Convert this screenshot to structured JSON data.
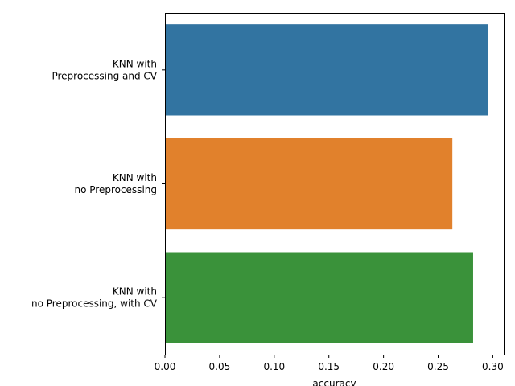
{
  "chart_data": {
    "type": "bar",
    "orientation": "horizontal",
    "categories": [
      [
        "KNN with",
        "Preprocessing and CV"
      ],
      [
        "KNN with",
        "no Preprocessing"
      ],
      [
        "KNN with",
        "no Preprocessing, with CV"
      ]
    ],
    "values": [
      0.296,
      0.263,
      0.282
    ],
    "colors": [
      "#3274a1",
      "#e1812c",
      "#3a923a"
    ],
    "xlabel": "accuracy",
    "ylabel": "",
    "title": "",
    "xlim": [
      0,
      0.31
    ],
    "xticks": [
      0.0,
      0.05,
      0.1,
      0.15,
      0.2,
      0.25,
      0.3
    ],
    "xtick_labels": [
      "0.00",
      "0.05",
      "0.10",
      "0.15",
      "0.20",
      "0.25",
      "0.30"
    ],
    "grid": false,
    "legend": "none"
  }
}
